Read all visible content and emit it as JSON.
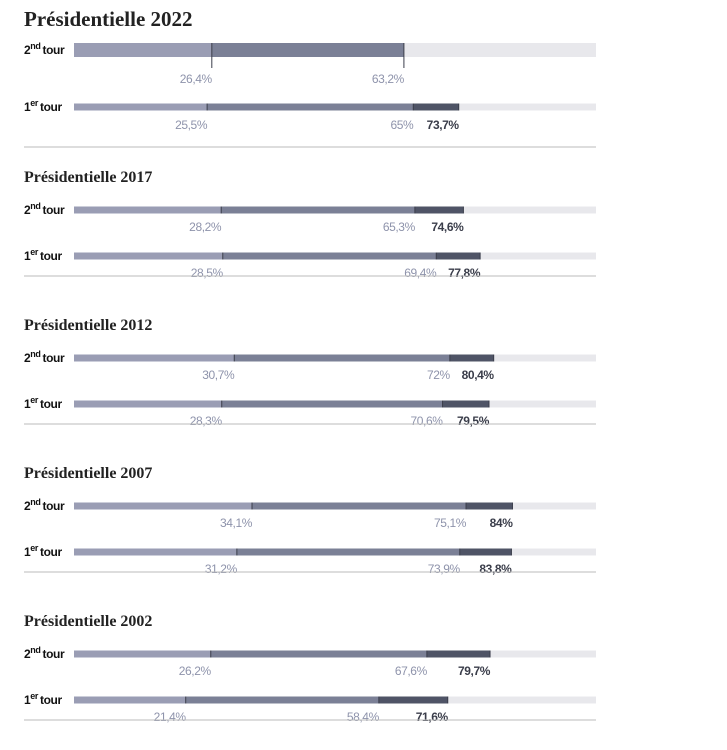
{
  "chart_data": [
    {
      "type": "bar",
      "title": "Présidentielle 2022",
      "xlim": [
        0,
        100
      ],
      "colors": [
        "#9a9db4",
        "#7b8096",
        "#4f5466"
      ],
      "track_color": "#e8e8ec",
      "rows": [
        {
          "label": {
            "n": "2",
            "sup": "nd",
            "word": "tour"
          },
          "values": [
            26.4,
            63.2
          ],
          "value_labels": [
            "26,4%",
            "63,2%"
          ]
        },
        {
          "label": {
            "n": "1",
            "sup": "er",
            "word": "tour"
          },
          "values": [
            25.5,
            65,
            73.7
          ],
          "value_labels": [
            "25,5%",
            "65%",
            "73,7%"
          ]
        }
      ]
    },
    {
      "type": "bar",
      "title": "Présidentielle 2017",
      "xlim": [
        0,
        100
      ],
      "colors": [
        "#9a9db4",
        "#7b8096",
        "#4f5466"
      ],
      "track_color": "#e8e8ec",
      "rows": [
        {
          "label": {
            "n": "2",
            "sup": "nd",
            "word": "tour"
          },
          "values": [
            28.2,
            65.3,
            74.6
          ],
          "value_labels": [
            "28,2%",
            "65,3%",
            "74,6%"
          ]
        },
        {
          "label": {
            "n": "1",
            "sup": "er",
            "word": "tour"
          },
          "values": [
            28.5,
            69.4,
            77.8
          ],
          "value_labels": [
            "28,5%",
            "69,4%",
            "77,8%"
          ]
        }
      ]
    },
    {
      "type": "bar",
      "title": "Présidentielle 2012",
      "xlim": [
        0,
        100
      ],
      "colors": [
        "#9a9db4",
        "#7b8096",
        "#4f5466"
      ],
      "track_color": "#e8e8ec",
      "rows": [
        {
          "label": {
            "n": "2",
            "sup": "nd",
            "word": "tour"
          },
          "values": [
            30.7,
            72,
            80.4
          ],
          "value_labels": [
            "30,7%",
            "72%",
            "80,4%"
          ]
        },
        {
          "label": {
            "n": "1",
            "sup": "er",
            "word": "tour"
          },
          "values": [
            28.3,
            70.6,
            79.5
          ],
          "value_labels": [
            "28,3%",
            "70,6%",
            "79,5%"
          ]
        }
      ]
    },
    {
      "type": "bar",
      "title": "Présidentielle 2007",
      "xlim": [
        0,
        100
      ],
      "colors": [
        "#9a9db4",
        "#7b8096",
        "#4f5466"
      ],
      "track_color": "#e8e8ec",
      "rows": [
        {
          "label": {
            "n": "2",
            "sup": "nd",
            "word": "tour"
          },
          "values": [
            34.1,
            75.1,
            84
          ],
          "value_labels": [
            "34,1%",
            "75,1%",
            "84%"
          ]
        },
        {
          "label": {
            "n": "1",
            "sup": "er",
            "word": "tour"
          },
          "values": [
            31.2,
            73.9,
            83.8
          ],
          "value_labels": [
            "31,2%",
            "73,9%",
            "83,8%"
          ]
        }
      ]
    },
    {
      "type": "bar",
      "title": "Présidentielle 2002",
      "xlim": [
        0,
        100
      ],
      "colors": [
        "#9a9db4",
        "#7b8096",
        "#4f5466"
      ],
      "track_color": "#e8e8ec",
      "rows": [
        {
          "label": {
            "n": "2",
            "sup": "nd",
            "word": "tour"
          },
          "values": [
            26.2,
            67.6,
            79.7
          ],
          "value_labels": [
            "26,2%",
            "67,6%",
            "79,7%"
          ]
        },
        {
          "label": {
            "n": "1",
            "sup": "er",
            "word": "tour"
          },
          "values": [
            21.4,
            58.4,
            71.6
          ],
          "value_labels": [
            "21,4%",
            "58,4%",
            "71,6%"
          ]
        }
      ]
    }
  ]
}
